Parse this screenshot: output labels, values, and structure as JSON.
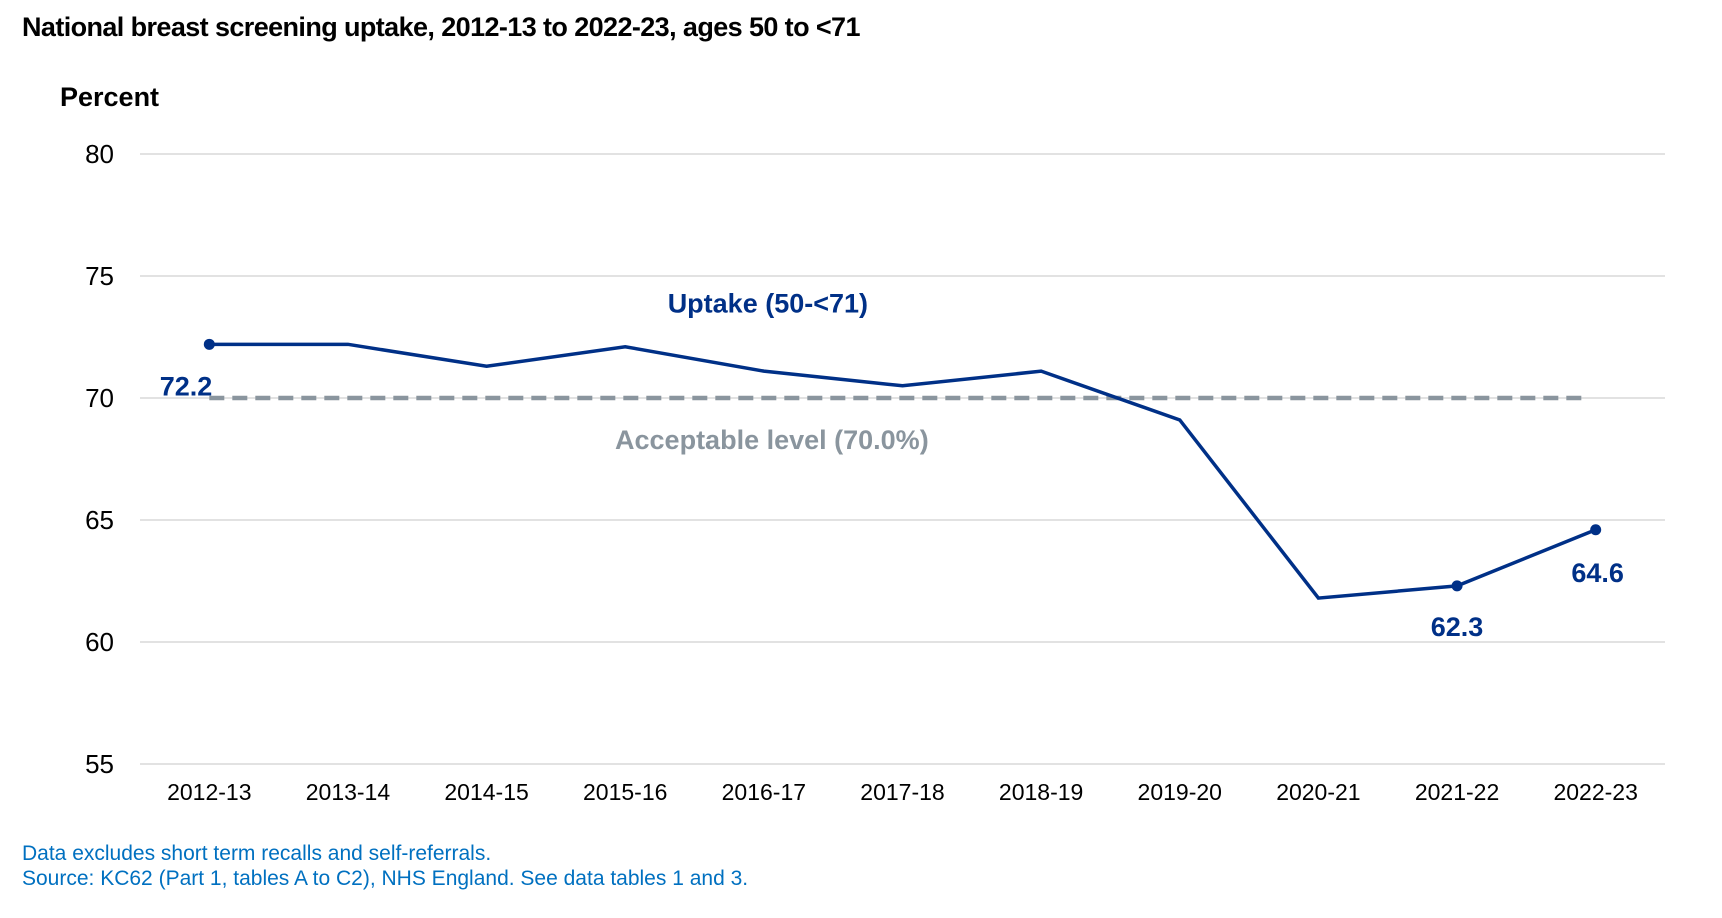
{
  "title": "National breast screening uptake, 2012-13 to 2022-23, ages 50 to <71",
  "footnotes": [
    "Data excludes short term recalls and self-referrals.",
    "Source: KC62 (Part 1, tables A to C2), NHS England. See data tables 1 and 3."
  ],
  "colors": {
    "uptake_line": "#003087",
    "acceptable_line": "#8a959e",
    "gridline": "#d9d9d9",
    "footnote_text": "#0070c0"
  },
  "chart_data": {
    "type": "line",
    "title": "National breast screening uptake, 2012-13 to 2022-23, ages 50 to <71",
    "xlabel": "",
    "ylabel": "Percent",
    "ylim": [
      55,
      80
    ],
    "yticks": [
      55,
      60,
      65,
      70,
      75,
      80
    ],
    "grid": true,
    "legend": "none",
    "categories": [
      "2012-13",
      "2013-14",
      "2014-15",
      "2015-16",
      "2016-17",
      "2017-18",
      "2018-19",
      "2019-20",
      "2020-21",
      "2021-22",
      "2022-23"
    ],
    "series": [
      {
        "name": "Uptake (50-<71)",
        "color": "#003087",
        "values": [
          72.2,
          72.2,
          71.3,
          72.1,
          71.1,
          70.5,
          71.1,
          69.1,
          61.8,
          62.3,
          64.6
        ],
        "markers_at": [
          "2012-13",
          "2021-22",
          "2022-23"
        ],
        "data_labels": [
          {
            "category": "2012-13",
            "text": "72.2"
          },
          {
            "category": "2021-22",
            "text": "62.3"
          },
          {
            "category": "2022-23",
            "text": "64.6"
          }
        ]
      }
    ],
    "reference_lines": [
      {
        "name": "Acceptable level (70.0%)",
        "value": 70.0,
        "style": "dashed",
        "color": "#8a959e"
      }
    ]
  }
}
